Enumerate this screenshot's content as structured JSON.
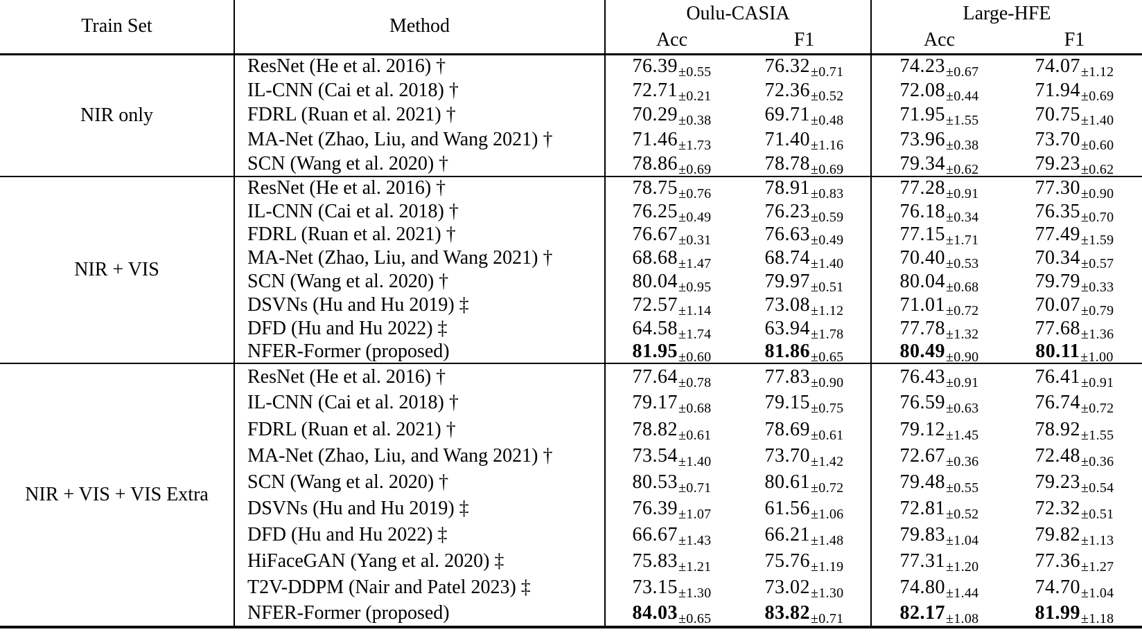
{
  "table": {
    "plus_minus": "±",
    "header": {
      "train_set": "Train Set",
      "method": "Method",
      "groups": [
        {
          "label": "Oulu-CASIA",
          "sub": [
            "Acc",
            "F1"
          ]
        },
        {
          "label": "Large-HFE",
          "sub": [
            "Acc",
            "F1"
          ]
        }
      ]
    },
    "groups": [
      {
        "train_set": "NIR only",
        "rows": [
          {
            "method": "ResNet (He et al. 2016) †",
            "bold": false,
            "cells": [
              [
                "76.39",
                "0.55"
              ],
              [
                "76.32",
                "0.71"
              ],
              [
                "74.23",
                "0.67"
              ],
              [
                "74.07",
                "1.12"
              ]
            ]
          },
          {
            "method": "IL-CNN (Cai et al. 2018) †",
            "bold": false,
            "cells": [
              [
                "72.71",
                "0.21"
              ],
              [
                "72.36",
                "0.52"
              ],
              [
                "72.08",
                "0.44"
              ],
              [
                "71.94",
                "0.69"
              ]
            ]
          },
          {
            "method": "FDRL (Ruan et al. 2021) †",
            "bold": false,
            "cells": [
              [
                "70.29",
                "0.38"
              ],
              [
                "69.71",
                "0.48"
              ],
              [
                "71.95",
                "1.55"
              ],
              [
                "70.75",
                "1.40"
              ]
            ]
          },
          {
            "method": "MA-Net (Zhao, Liu, and Wang 2021) †",
            "bold": false,
            "cells": [
              [
                "71.46",
                "1.73"
              ],
              [
                "71.40",
                "1.16"
              ],
              [
                "73.96",
                "0.38"
              ],
              [
                "73.70",
                "0.60"
              ]
            ]
          },
          {
            "method": "SCN (Wang et al. 2020) †",
            "bold": false,
            "cells": [
              [
                "78.86",
                "0.69"
              ],
              [
                "78.78",
                "0.69"
              ],
              [
                "79.34",
                "0.62"
              ],
              [
                "79.23",
                "0.62"
              ]
            ]
          }
        ]
      },
      {
        "train_set": "NIR + VIS",
        "rows": [
          {
            "method": "ResNet (He et al. 2016) †",
            "bold": false,
            "cells": [
              [
                "78.75",
                "0.76"
              ],
              [
                "78.91",
                "0.83"
              ],
              [
                "77.28",
                "0.91"
              ],
              [
                "77.30",
                "0.90"
              ]
            ]
          },
          {
            "method": "IL-CNN (Cai et al. 2018) †",
            "bold": false,
            "cells": [
              [
                "76.25",
                "0.49"
              ],
              [
                "76.23",
                "0.59"
              ],
              [
                "76.18",
                "0.34"
              ],
              [
                "76.35",
                "0.70"
              ]
            ]
          },
          {
            "method": "FDRL (Ruan et al. 2021) †",
            "bold": false,
            "cells": [
              [
                "76.67",
                "0.31"
              ],
              [
                "76.63",
                "0.49"
              ],
              [
                "77.15",
                "1.71"
              ],
              [
                "77.49",
                "1.59"
              ]
            ]
          },
          {
            "method": "MA-Net (Zhao, Liu, and Wang 2021) †",
            "bold": false,
            "cells": [
              [
                "68.68",
                "1.47"
              ],
              [
                "68.74",
                "1.40"
              ],
              [
                "70.40",
                "0.53"
              ],
              [
                "70.34",
                "0.57"
              ]
            ]
          },
          {
            "method": "SCN (Wang et al. 2020) †",
            "bold": false,
            "cells": [
              [
                "80.04",
                "0.95"
              ],
              [
                "79.97",
                "0.51"
              ],
              [
                "80.04",
                "0.68"
              ],
              [
                "79.79",
                "0.33"
              ]
            ]
          },
          {
            "method": "DSVNs (Hu and Hu 2019) ‡",
            "bold": false,
            "cells": [
              [
                "72.57",
                "1.14"
              ],
              [
                "73.08",
                "1.12"
              ],
              [
                "71.01",
                "0.72"
              ],
              [
                "70.07",
                "0.79"
              ]
            ]
          },
          {
            "method": "DFD (Hu and Hu 2022) ‡",
            "bold": false,
            "cells": [
              [
                "64.58",
                "1.74"
              ],
              [
                "63.94",
                "1.78"
              ],
              [
                "77.78",
                "1.32"
              ],
              [
                "77.68",
                "1.36"
              ]
            ]
          },
          {
            "method": "NFER-Former (proposed)",
            "bold": true,
            "cells": [
              [
                "81.95",
                "0.60"
              ],
              [
                "81.86",
                "0.65"
              ],
              [
                "80.49",
                "0.90"
              ],
              [
                "80.11",
                "1.00"
              ]
            ]
          }
        ]
      },
      {
        "train_set": "NIR + VIS + VIS Extra",
        "rows": [
          {
            "method": "ResNet (He et al. 2016) †",
            "bold": false,
            "cells": [
              [
                "77.64",
                "0.78"
              ],
              [
                "77.83",
                "0.90"
              ],
              [
                "76.43",
                "0.91"
              ],
              [
                "76.41",
                "0.91"
              ]
            ]
          },
          {
            "method": "IL-CNN (Cai et al. 2018) †",
            "bold": false,
            "cells": [
              [
                "79.17",
                "0.68"
              ],
              [
                "79.15",
                "0.75"
              ],
              [
                "76.59",
                "0.63"
              ],
              [
                "76.74",
                "0.72"
              ]
            ]
          },
          {
            "method": "FDRL (Ruan et al. 2021) †",
            "bold": false,
            "cells": [
              [
                "78.82",
                "0.61"
              ],
              [
                "78.69",
                "0.61"
              ],
              [
                "79.12",
                "1.45"
              ],
              [
                "78.92",
                "1.55"
              ]
            ]
          },
          {
            "method": "MA-Net (Zhao, Liu, and Wang 2021) †",
            "bold": false,
            "cells": [
              [
                "73.54",
                "1.40"
              ],
              [
                "73.70",
                "1.42"
              ],
              [
                "72.67",
                "0.36"
              ],
              [
                "72.48",
                "0.36"
              ]
            ]
          },
          {
            "method": "SCN (Wang et al. 2020) †",
            "bold": false,
            "cells": [
              [
                "80.53",
                "0.71"
              ],
              [
                "80.61",
                "0.72"
              ],
              [
                "79.48",
                "0.55"
              ],
              [
                "79.23",
                "0.54"
              ]
            ]
          },
          {
            "method": "DSVNs (Hu and Hu 2019) ‡",
            "bold": false,
            "cells": [
              [
                "76.39",
                "1.07"
              ],
              [
                "61.56",
                "1.06"
              ],
              [
                "72.81",
                "0.52"
              ],
              [
                "72.32",
                "0.51"
              ]
            ]
          },
          {
            "method": "DFD (Hu and Hu 2022) ‡",
            "bold": false,
            "cells": [
              [
                "66.67",
                "1.43"
              ],
              [
                "66.21",
                "1.48"
              ],
              [
                "79.83",
                "1.04"
              ],
              [
                "79.82",
                "1.13"
              ]
            ]
          },
          {
            "method": "HiFaceGAN (Yang et al. 2020) ‡",
            "bold": false,
            "cells": [
              [
                "75.83",
                "1.21"
              ],
              [
                "75.76",
                "1.19"
              ],
              [
                "77.31",
                "1.20"
              ],
              [
                "77.36",
                "1.27"
              ]
            ]
          },
          {
            "method": "T2V-DDPM (Nair and Patel 2023) ‡",
            "bold": false,
            "cells": [
              [
                "73.15",
                "1.30"
              ],
              [
                "73.02",
                "1.30"
              ],
              [
                "74.80",
                "1.44"
              ],
              [
                "74.70",
                "1.04"
              ]
            ]
          },
          {
            "method": "NFER-Former (proposed)",
            "bold": true,
            "cells": [
              [
                "84.03",
                "0.65"
              ],
              [
                "83.82",
                "0.71"
              ],
              [
                "82.17",
                "1.08"
              ],
              [
                "81.99",
                "1.18"
              ]
            ]
          }
        ]
      }
    ]
  }
}
